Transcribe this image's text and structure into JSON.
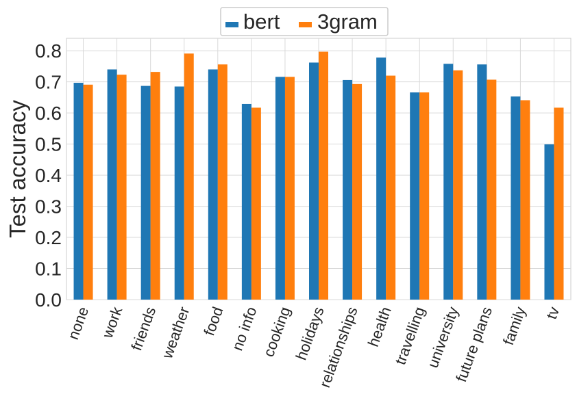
{
  "chart_data": {
    "type": "bar",
    "ylabel": "Test accuracy",
    "xlabel": "",
    "ylim": [
      0,
      0.84
    ],
    "yticks": [
      "0.0",
      "0.1",
      "0.2",
      "0.3",
      "0.4",
      "0.5",
      "0.6",
      "0.7",
      "0.8"
    ],
    "grid": true,
    "legend_position": "top-center",
    "categories": [
      "none",
      "work",
      "friends",
      "weather",
      "food",
      "no info",
      "cooking",
      "holidays",
      "relationships",
      "health",
      "travelling",
      "university",
      "future plans",
      "family",
      "tv"
    ],
    "series": [
      {
        "name": "bert",
        "color": "#1f77b4",
        "values": [
          0.697,
          0.74,
          0.687,
          0.685,
          0.74,
          0.629,
          0.716,
          0.762,
          0.706,
          0.778,
          0.666,
          0.758,
          0.756,
          0.653,
          0.499
        ]
      },
      {
        "name": "3gram",
        "color": "#ff7f0e",
        "values": [
          0.691,
          0.723,
          0.732,
          0.791,
          0.756,
          0.617,
          0.716,
          0.797,
          0.693,
          0.72,
          0.666,
          0.737,
          0.707,
          0.641,
          0.617
        ]
      }
    ]
  }
}
